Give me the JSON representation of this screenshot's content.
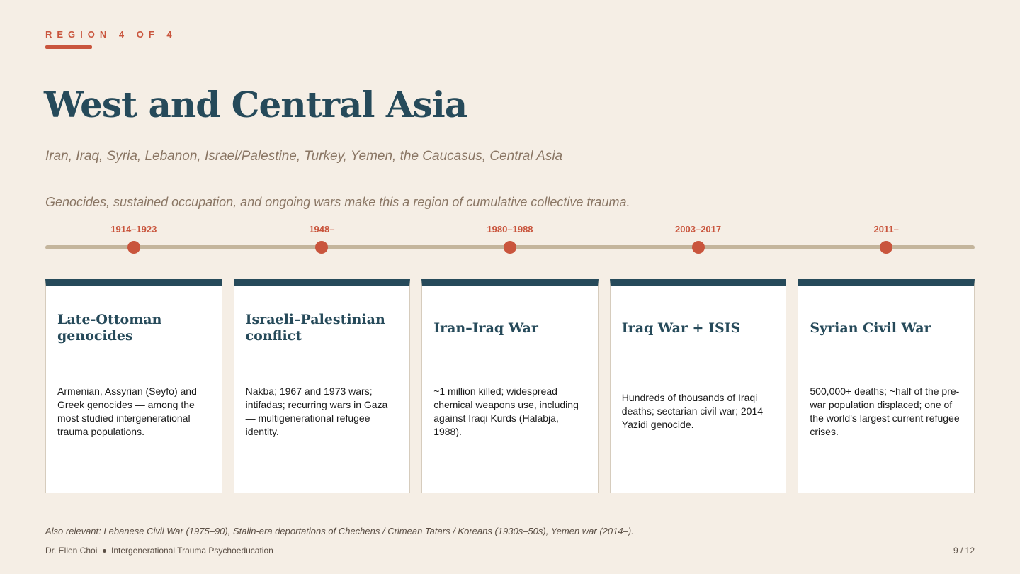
{
  "header": {
    "eyebrow": "REGION 4 OF 4",
    "title": "West and Central Asia",
    "subtitle": "Iran, Iraq, Syria, Lebanon, Israel/Palestine, Turkey, Yemen, the Caucasus, Central Asia",
    "lead": "Genocides, sustained occupation, and ongoing wars make this a region of cumulative collective trauma."
  },
  "timeline": [
    {
      "date": "1914–1923",
      "title": "Late-Ottoman genocides",
      "body": "Armenian, Assyrian (Seyfo) and Greek genocides — among the most studied intergenerational trauma populations."
    },
    {
      "date": "1948–",
      "title": "Israeli–Palestinian conflict",
      "body": "Nakba; 1967 and 1973 wars; intifadas; recurring wars in Gaza — multigenerational refugee identity."
    },
    {
      "date": "1980–1988",
      "title": "Iran–Iraq War",
      "body": "~1 million killed; widespread chemical weapons use, including against Iraqi Kurds (Halabja, 1988)."
    },
    {
      "date": "2003–2017",
      "title": "Iraq War + ISIS",
      "body": "Hundreds of thousands of Iraqi deaths; sectarian civil war; 2014 Yazidi genocide."
    },
    {
      "date": "2011–",
      "title": "Syrian Civil War",
      "body": "500,000+ deaths; ~half of the pre-war population displaced; one of the world's largest current refugee crises."
    }
  ],
  "footnote": "Also relevant: Lebanese Civil War (1975–90), Stalin-era deportations of Chechens / Crimean Tatars / Koreans (1930s–50s), Yemen war (2014–).",
  "footer": {
    "author": "Dr. Ellen Choi",
    "course": "Intergenerational Trauma Psychoeducation",
    "page": "9 / 12"
  }
}
